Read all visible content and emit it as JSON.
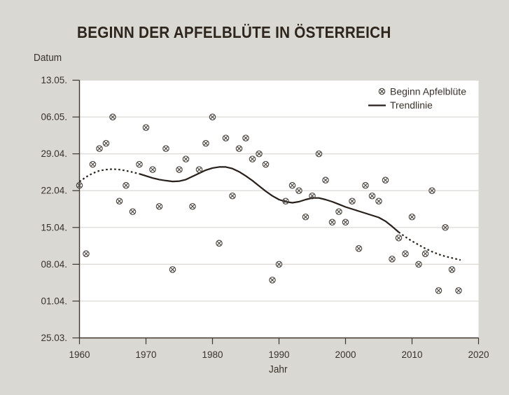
{
  "title": "BEGINN DER APFELBLÜTE IN ÖSTERREICH",
  "colors": {
    "background": "#d9d8d2",
    "plot_background": "#ffffff",
    "gridline": "#d8d6d0",
    "axis": "#3c362f",
    "text": "#38322b",
    "title": "#2e261d",
    "marker": "#4a443e",
    "trendline": "#261f1a"
  },
  "chart_data": {
    "type": "scatter",
    "title": "BEGINN DER APFELBLÜTE IN ÖSTERREICH",
    "xlabel": "Jahr",
    "ylabel": "Datum",
    "grid": "horizontal-only",
    "legend_position": "top-right-inside",
    "legend": [
      {
        "label": "Beginn Apfelblüte",
        "marker": "circled-x"
      },
      {
        "label": "Trendlinie",
        "marker": "line"
      }
    ],
    "x_ticks": [
      1960,
      1970,
      1980,
      1990,
      2000,
      2010,
      2020
    ],
    "xlim": [
      1960,
      2020
    ],
    "y_ticks": [
      {
        "label": "13.05.",
        "days": 49
      },
      {
        "label": "06.05.",
        "days": 42
      },
      {
        "label": "29.04.",
        "days": 35
      },
      {
        "label": "22.04.",
        "days": 28
      },
      {
        "label": "15.04.",
        "days": 21
      },
      {
        "label": "08.04.",
        "days": 14
      },
      {
        "label": "01.04.",
        "days": 7
      },
      {
        "label": "25.03.",
        "days": 0
      }
    ],
    "y_unit": "days after 25.03.",
    "ylim_days": [
      0,
      49
    ],
    "series": [
      {
        "name": "Beginn Apfelblüte",
        "type": "scatter",
        "points": [
          {
            "year": 1960,
            "date": "23.04.",
            "days": 29
          },
          {
            "year": 1961,
            "date": "10.04.",
            "days": 16
          },
          {
            "year": 1962,
            "date": "27.04.",
            "days": 33
          },
          {
            "year": 1963,
            "date": "30.04.",
            "days": 36
          },
          {
            "year": 1964,
            "date": "01.05.",
            "days": 37
          },
          {
            "year": 1965,
            "date": "06.05.",
            "days": 42
          },
          {
            "year": 1966,
            "date": "20.04.",
            "days": 26
          },
          {
            "year": 1967,
            "date": "23.04.",
            "days": 29
          },
          {
            "year": 1968,
            "date": "18.04.",
            "days": 24
          },
          {
            "year": 1969,
            "date": "27.04.",
            "days": 33
          },
          {
            "year": 1970,
            "date": "04.05.",
            "days": 40
          },
          {
            "year": 1971,
            "date": "26.04.",
            "days": 32
          },
          {
            "year": 1972,
            "date": "19.04.",
            "days": 25
          },
          {
            "year": 1973,
            "date": "30.04.",
            "days": 36
          },
          {
            "year": 1974,
            "date": "07.04.",
            "days": 13
          },
          {
            "year": 1975,
            "date": "26.04.",
            "days": 32
          },
          {
            "year": 1976,
            "date": "28.04.",
            "days": 34
          },
          {
            "year": 1977,
            "date": "19.04.",
            "days": 25
          },
          {
            "year": 1978,
            "date": "26.04.",
            "days": 32
          },
          {
            "year": 1979,
            "date": "01.05.",
            "days": 37
          },
          {
            "year": 1980,
            "date": "06.05.",
            "days": 42
          },
          {
            "year": 1981,
            "date": "12.04.",
            "days": 18
          },
          {
            "year": 1982,
            "date": "02.05.",
            "days": 38
          },
          {
            "year": 1983,
            "date": "21.04.",
            "days": 27
          },
          {
            "year": 1984,
            "date": "30.04.",
            "days": 36
          },
          {
            "year": 1985,
            "date": "02.05.",
            "days": 38
          },
          {
            "year": 1986,
            "date": "28.04.",
            "days": 34
          },
          {
            "year": 1987,
            "date": "29.04.",
            "days": 35
          },
          {
            "year": 1988,
            "date": "27.04.",
            "days": 33
          },
          {
            "year": 1989,
            "date": "05.04.",
            "days": 11
          },
          {
            "year": 1990,
            "date": "08.04.",
            "days": 14
          },
          {
            "year": 1991,
            "date": "20.04.",
            "days": 26
          },
          {
            "year": 1992,
            "date": "23.04.",
            "days": 29
          },
          {
            "year": 1993,
            "date": "22.04.",
            "days": 28
          },
          {
            "year": 1994,
            "date": "17.04.",
            "days": 23
          },
          {
            "year": 1995,
            "date": "21.04.",
            "days": 27
          },
          {
            "year": 1996,
            "date": "29.04.",
            "days": 35
          },
          {
            "year": 1997,
            "date": "24.04.",
            "days": 30
          },
          {
            "year": 1998,
            "date": "16.04.",
            "days": 22
          },
          {
            "year": 1999,
            "date": "18.04.",
            "days": 24
          },
          {
            "year": 2000,
            "date": "16.04.",
            "days": 22
          },
          {
            "year": 2001,
            "date": "20.04.",
            "days": 26
          },
          {
            "year": 2002,
            "date": "11.04.",
            "days": 17
          },
          {
            "year": 2003,
            "date": "23.04.",
            "days": 29
          },
          {
            "year": 2004,
            "date": "21.04.",
            "days": 27
          },
          {
            "year": 2005,
            "date": "20.04.",
            "days": 26
          },
          {
            "year": 2006,
            "date": "24.04.",
            "days": 30
          },
          {
            "year": 2007,
            "date": "09.04.",
            "days": 15
          },
          {
            "year": 2008,
            "date": "13.04.",
            "days": 19
          },
          {
            "year": 2009,
            "date": "10.04.",
            "days": 16
          },
          {
            "year": 2010,
            "date": "17.04.",
            "days": 23
          },
          {
            "year": 2011,
            "date": "08.04.",
            "days": 14
          },
          {
            "year": 2012,
            "date": "10.04.",
            "days": 16
          },
          {
            "year": 2013,
            "date": "22.04.",
            "days": 28
          },
          {
            "year": 2014,
            "date": "03.04.",
            "days": 9
          },
          {
            "year": 2015,
            "date": "15.04.",
            "days": 21
          },
          {
            "year": 2016,
            "date": "07.04.",
            "days": 13
          },
          {
            "year": 2017,
            "date": "03.04.",
            "days": 9
          }
        ]
      },
      {
        "name": "Trendlinie",
        "type": "line",
        "segments": [
          {
            "style": "dotted",
            "points": [
              [
                1960,
                29.7
              ],
              [
                1961,
                30.6
              ],
              [
                1962,
                31.3
              ],
              [
                1963,
                31.8
              ],
              [
                1964,
                32.0
              ],
              [
                1965,
                32.1
              ],
              [
                1966,
                32.0
              ],
              [
                1967,
                31.8
              ],
              [
                1968,
                31.5
              ],
              [
                1969,
                31.2
              ]
            ]
          },
          {
            "style": "solid",
            "points": [
              [
                1969,
                31.2
              ],
              [
                1970,
                30.8
              ],
              [
                1971,
                30.4
              ],
              [
                1972,
                30.1
              ],
              [
                1973,
                29.9
              ],
              [
                1974,
                29.75
              ],
              [
                1975,
                29.8
              ],
              [
                1976,
                30.1
              ],
              [
                1977,
                30.7
              ],
              [
                1978,
                31.3
              ],
              [
                1979,
                31.9
              ],
              [
                1980,
                32.3
              ],
              [
                1981,
                32.5
              ],
              [
                1982,
                32.5
              ],
              [
                1983,
                32.2
              ],
              [
                1984,
                31.6
              ],
              [
                1985,
                30.8
              ],
              [
                1986,
                29.9
              ],
              [
                1987,
                28.9
              ],
              [
                1988,
                27.9
              ],
              [
                1989,
                27.0
              ],
              [
                1990,
                26.3
              ],
              [
                1991,
                25.9
              ],
              [
                1992,
                25.7
              ],
              [
                1993,
                25.9
              ],
              [
                1994,
                26.3
              ],
              [
                1995,
                26.6
              ],
              [
                1996,
                26.6
              ],
              [
                1997,
                26.3
              ],
              [
                1998,
                25.9
              ],
              [
                1999,
                25.4
              ],
              [
                2000,
                24.9
              ],
              [
                2001,
                24.5
              ],
              [
                2002,
                24.1
              ],
              [
                2003,
                23.7
              ],
              [
                2004,
                23.3
              ],
              [
                2005,
                22.9
              ],
              [
                2006,
                22.2
              ],
              [
                2007,
                21.2
              ],
              [
                2008,
                20.1
              ]
            ]
          },
          {
            "style": "dotted",
            "points": [
              [
                2008,
                20.1
              ],
              [
                2009,
                19.2
              ],
              [
                2010,
                18.4
              ],
              [
                2011,
                17.7
              ],
              [
                2012,
                17.0
              ],
              [
                2013,
                16.4
              ],
              [
                2014,
                15.9
              ],
              [
                2015,
                15.5
              ],
              [
                2016,
                15.2
              ],
              [
                2017,
                14.9
              ],
              [
                2017.3,
                14.8
              ]
            ]
          }
        ]
      }
    ]
  }
}
